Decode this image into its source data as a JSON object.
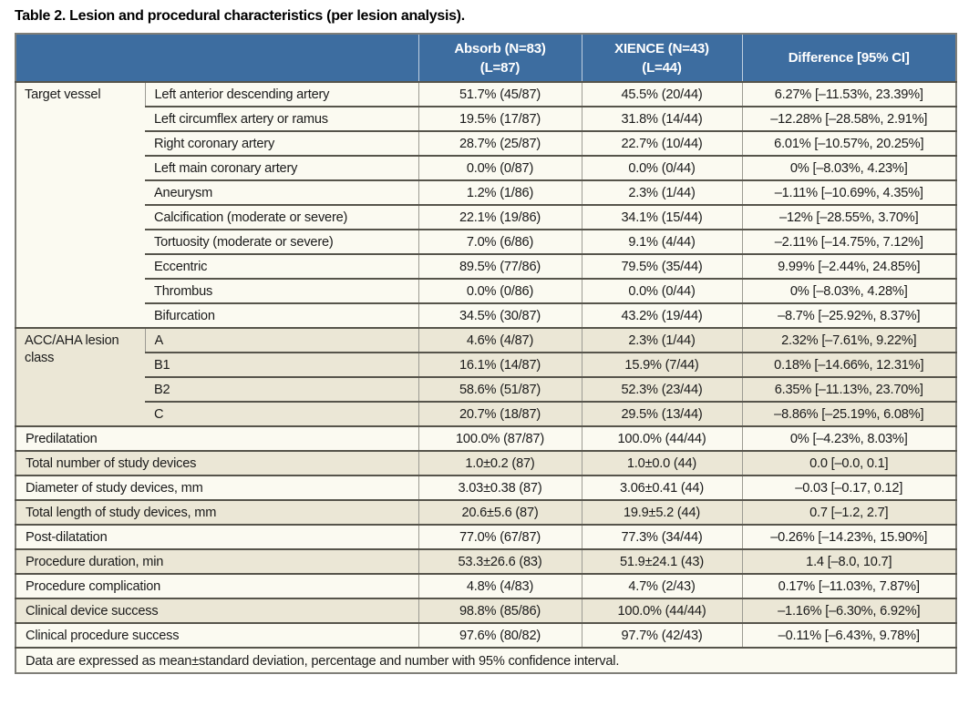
{
  "title": "Table 2. Lesion and procedural characteristics (per lesion analysis).",
  "header": {
    "empty_label": "",
    "absorb_line1": "Absorb (N=83)",
    "absorb_line2": "(L=87)",
    "xience_line1": "XIENCE (N=43)",
    "xience_line2": "(L=44)",
    "difference": "Difference [95% CI]"
  },
  "sections": [
    {
      "group_label": "Target vessel",
      "shade": "light",
      "rows": [
        {
          "label": "Left anterior descending artery",
          "absorb": "51.7% (45/87)",
          "xience": "45.5% (20/44)",
          "difference": "6.27% [–11.53%, 23.39%]"
        },
        {
          "label": "Left circumflex artery or ramus",
          "absorb": "19.5% (17/87)",
          "xience": "31.8% (14/44)",
          "difference": "–12.28% [–28.58%, 2.91%]"
        },
        {
          "label": "Right coronary artery",
          "absorb": "28.7% (25/87)",
          "xience": "22.7% (10/44)",
          "difference": "6.01% [–10.57%, 20.25%]"
        },
        {
          "label": "Left main coronary artery",
          "absorb": "0.0% (0/87)",
          "xience": "0.0% (0/44)",
          "difference": "0% [–8.03%, 4.23%]"
        },
        {
          "label": "Aneurysm",
          "absorb": "1.2% (1/86)",
          "xience": "2.3% (1/44)",
          "difference": "–1.11% [–10.69%, 4.35%]"
        },
        {
          "label": "Calcification (moderate or severe)",
          "absorb": "22.1% (19/86)",
          "xience": "34.1% (15/44)",
          "difference": "–12% [–28.55%, 3.70%]"
        },
        {
          "label": "Tortuosity (moderate or severe)",
          "absorb": "7.0% (6/86)",
          "xience": "9.1% (4/44)",
          "difference": "–2.11% [–14.75%, 7.12%]"
        },
        {
          "label": "Eccentric",
          "absorb": "89.5% (77/86)",
          "xience": "79.5% (35/44)",
          "difference": "9.99% [–2.44%, 24.85%]"
        },
        {
          "label": "Thrombus",
          "absorb": "0.0% (0/86)",
          "xience": "0.0% (0/44)",
          "difference": "0% [–8.03%, 4.28%]"
        },
        {
          "label": "Bifurcation",
          "absorb": "34.5% (30/87)",
          "xience": "43.2% (19/44)",
          "difference": "–8.7% [–25.92%, 8.37%]"
        }
      ]
    },
    {
      "group_label": "ACC/AHA lesion class",
      "shade": "dark",
      "rows": [
        {
          "label": "A",
          "absorb": "4.6% (4/87)",
          "xience": "2.3% (1/44)",
          "difference": "2.32% [–7.61%, 9.22%]"
        },
        {
          "label": "B1",
          "absorb": "16.1% (14/87)",
          "xience": "15.9% (7/44)",
          "difference": "0.18% [–14.66%, 12.31%]"
        },
        {
          "label": "B2",
          "absorb": "58.6% (51/87)",
          "xience": "52.3% (23/44)",
          "difference": "6.35% [–11.13%, 23.70%]"
        },
        {
          "label": "C",
          "absorb": "20.7% (18/87)",
          "xience": "29.5% (13/44)",
          "difference": "–8.86% [–25.19%, 6.08%]"
        }
      ]
    },
    {
      "group_label": null,
      "shade": "light",
      "rows": [
        {
          "label": "Predilatation",
          "absorb": "100.0% (87/87)",
          "xience": "100.0% (44/44)",
          "difference": "0% [–4.23%, 8.03%]"
        }
      ]
    },
    {
      "group_label": null,
      "shade": "dark",
      "rows": [
        {
          "label": "Total number of study devices",
          "absorb": "1.0±0.2 (87)",
          "xience": "1.0±0.0 (44)",
          "difference": "0.0 [–0.0, 0.1]"
        }
      ]
    },
    {
      "group_label": null,
      "shade": "light",
      "rows": [
        {
          "label": "Diameter of study devices, mm",
          "absorb": "3.03±0.38 (87)",
          "xience": "3.06±0.41 (44)",
          "difference": "–0.03 [–0.17, 0.12]"
        }
      ]
    },
    {
      "group_label": null,
      "shade": "dark",
      "rows": [
        {
          "label": "Total length of study devices, mm",
          "absorb": "20.6±5.6 (87)",
          "xience": "19.9±5.2 (44)",
          "difference": "0.7 [–1.2, 2.7]"
        }
      ]
    },
    {
      "group_label": null,
      "shade": "light",
      "rows": [
        {
          "label": "Post-dilatation",
          "absorb": "77.0% (67/87)",
          "xience": "77.3% (34/44)",
          "difference": "–0.26% [–14.23%, 15.90%]"
        }
      ]
    },
    {
      "group_label": null,
      "shade": "dark",
      "rows": [
        {
          "label": "Procedure duration, min",
          "absorb": "53.3±26.6 (83)",
          "xience": "51.9±24.1 (43)",
          "difference": "1.4 [–8.0, 10.7]"
        }
      ]
    },
    {
      "group_label": null,
      "shade": "light",
      "rows": [
        {
          "label": "Procedure complication",
          "absorb": "4.8% (4/83)",
          "xience": "4.7% (2/43)",
          "difference": "0.17% [–11.03%, 7.87%]"
        }
      ]
    },
    {
      "group_label": null,
      "shade": "dark",
      "rows": [
        {
          "label": "Clinical device success",
          "absorb": "98.8% (85/86)",
          "xience": "100.0% (44/44)",
          "difference": "–1.16% [–6.30%, 6.92%]"
        }
      ]
    },
    {
      "group_label": null,
      "shade": "light",
      "rows": [
        {
          "label": "Clinical procedure success",
          "absorb": "97.6% (80/82)",
          "xience": "97.7% (42/43)",
          "difference": "–0.11% [–6.43%, 9.78%]"
        }
      ]
    }
  ],
  "footnote": "Data are expressed as mean±standard deviation, percentage and number with 95% confidence interval.",
  "colors": {
    "header_bg": "#3d6da0",
    "header_text": "#ffffff",
    "row_light": "#fbfaf1",
    "row_dark": "#ebe7d6",
    "border_dark": "#56544b",
    "border_gray": "#9c9b93",
    "outer_border": "#7f7e78",
    "text": "#1a1a1a"
  }
}
